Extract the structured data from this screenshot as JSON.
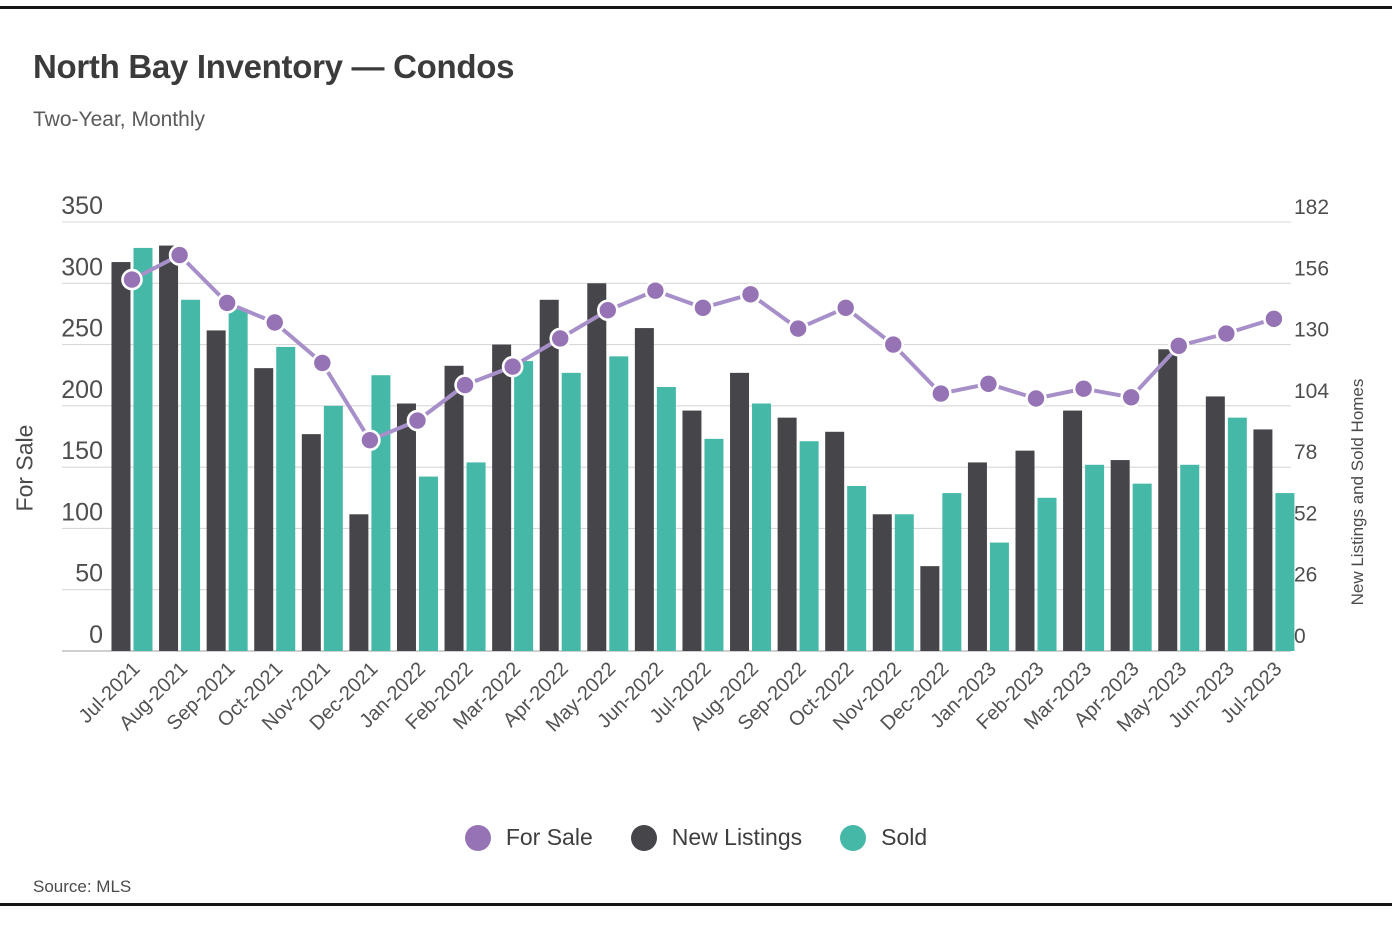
{
  "header": {
    "title": "North Bay Inventory — Condos",
    "subtitle": "Two-Year, Monthly"
  },
  "source": {
    "text": "Source: MLS"
  },
  "legend": [
    {
      "label": "For Sale",
      "color": "#9573b4"
    },
    {
      "label": "New Listings",
      "color": "#464549"
    },
    {
      "label": "Sold",
      "color": "#45b8a8"
    }
  ],
  "chart_data": {
    "type": "combo-bar-line",
    "title": "North Bay Inventory — Condos",
    "subtitle": "Two-Year, Monthly",
    "categories": [
      "Jul-2021",
      "Aug-2021",
      "Sep-2021",
      "Oct-2021",
      "Nov-2021",
      "Dec-2021",
      "Jan-2022",
      "Feb-2022",
      "Mar-2022",
      "Apr-2022",
      "May-2022",
      "Jun-2022",
      "Jul-2022",
      "Aug-2022",
      "Sep-2022",
      "Oct-2022",
      "Nov-2022",
      "Dec-2022",
      "Jan-2023",
      "Feb-2023",
      "Mar-2023",
      "Apr-2023",
      "May-2023",
      "Jun-2023",
      "Jul-2023"
    ],
    "series": [
      {
        "name": "For Sale",
        "type": "line",
        "axis": "left",
        "color": "#a78fc9",
        "marker_color": "#9573b4",
        "values": [
          303,
          323,
          284,
          268,
          235,
          172,
          188,
          217,
          232,
          255,
          278,
          294,
          280,
          291,
          263,
          280,
          250,
          210,
          218,
          206,
          214,
          207,
          249,
          259,
          271
        ]
      },
      {
        "name": "New Listings",
        "type": "bar",
        "axis": "right",
        "color": "#464549",
        "values": [
          165,
          172,
          136,
          120,
          92,
          58,
          105,
          121,
          130,
          149,
          156,
          137,
          102,
          118,
          99,
          93,
          58,
          36,
          80,
          85,
          102,
          81,
          128,
          108,
          94
        ]
      },
      {
        "name": "Sold",
        "type": "bar",
        "axis": "right",
        "color": "#45b8a8",
        "values": [
          171,
          149,
          145,
          129,
          104,
          117,
          74,
          80,
          123,
          118,
          125,
          112,
          90,
          105,
          89,
          70,
          58,
          67,
          46,
          65,
          79,
          71,
          79,
          99,
          67
        ]
      }
    ],
    "left_axis": {
      "title": "For Sale",
      "min": 0,
      "max": 350,
      "ticks": [
        0,
        50,
        100,
        150,
        200,
        250,
        300,
        350
      ]
    },
    "right_axis": {
      "title": "New Listings and Sold Homes",
      "min": 0,
      "max": 182,
      "ticks": [
        0,
        26,
        52,
        78,
        104,
        130,
        156,
        182
      ]
    },
    "grid": true,
    "legend_position": "bottom",
    "style": {
      "grid_color": "#d8d8d8",
      "axis_line_color": "#c0c0c0",
      "tick_text_color": "#4e4e4e",
      "x_tick_text_color": "#525252"
    }
  }
}
